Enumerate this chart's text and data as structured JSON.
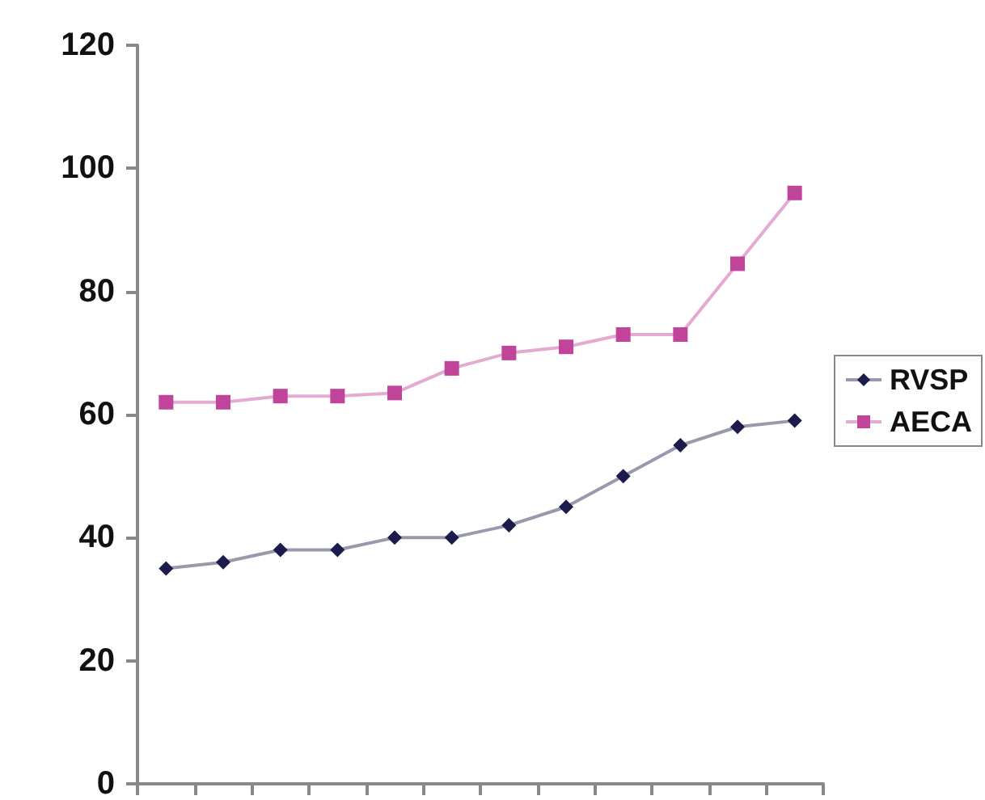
{
  "chart_data": {
    "type": "line",
    "categories": [
      null,
      null,
      null,
      null,
      null,
      null,
      null,
      null,
      null,
      null,
      null,
      null
    ],
    "series": [
      {
        "name": "RVSP",
        "color": "#1c1c4c",
        "marker": "diamond",
        "values": [
          35,
          36,
          38,
          38,
          40,
          40,
          42,
          45,
          50,
          55,
          58,
          59
        ]
      },
      {
        "name": "AECA",
        "color": "#c0449a",
        "marker": "square",
        "values": [
          62,
          62,
          63,
          63,
          63.5,
          67.5,
          70,
          71,
          73,
          73,
          84.5,
          96
        ]
      }
    ],
    "ylim": [
      0,
      120
    ],
    "yticks": [
      0,
      20,
      40,
      60,
      80,
      100,
      120
    ],
    "grid": false,
    "legend": "right"
  }
}
